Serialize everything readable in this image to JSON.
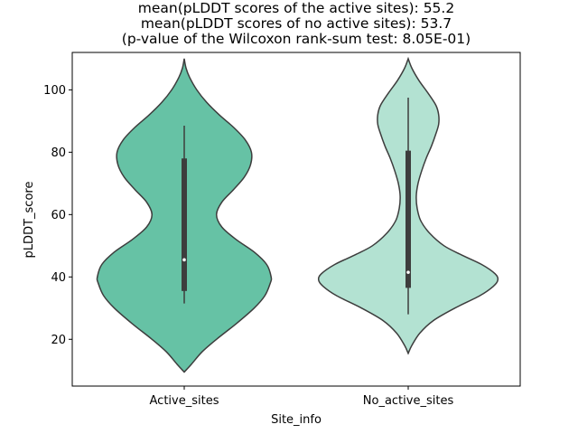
{
  "chart_data": {
    "type": "violin",
    "title_lines": [
      "mean(pLDDT scores of the active sites): 55.2",
      "mean(pLDDT scores of no active sites): 53.7",
      "(p-value of the Wilcoxon rank-sum test: 8.05E-01)"
    ],
    "xlabel": "Site_info",
    "ylabel": "pLDDT_score",
    "categories": [
      "Active_sites",
      "No_active_sites"
    ],
    "ylim": [
      5,
      112
    ],
    "yticks": [
      20,
      40,
      60,
      80,
      100
    ],
    "colors": [
      "#66c2a5",
      "#b3e2d2"
    ],
    "edge_color": "#3d3d3d",
    "violins": [
      {
        "name": "Active_sites",
        "density_min": 9.5,
        "density_max": 110,
        "profile": [
          [
            9.5,
            0.0
          ],
          [
            12,
            0.08
          ],
          [
            16,
            0.2
          ],
          [
            20,
            0.36
          ],
          [
            25,
            0.58
          ],
          [
            30,
            0.78
          ],
          [
            34,
            0.9
          ],
          [
            38,
            0.96
          ],
          [
            40,
            0.97
          ],
          [
            44,
            0.92
          ],
          [
            48,
            0.78
          ],
          [
            52,
            0.58
          ],
          [
            56,
            0.42
          ],
          [
            60,
            0.36
          ],
          [
            64,
            0.42
          ],
          [
            68,
            0.55
          ],
          [
            72,
            0.67
          ],
          [
            76,
            0.74
          ],
          [
            80,
            0.75
          ],
          [
            84,
            0.68
          ],
          [
            88,
            0.55
          ],
          [
            92,
            0.39
          ],
          [
            96,
            0.25
          ],
          [
            100,
            0.14
          ],
          [
            104,
            0.06
          ],
          [
            107,
            0.02
          ],
          [
            110,
            0.0
          ]
        ],
        "q1": 35.5,
        "median": 45.5,
        "q3": 78,
        "whisker_low": 31.5,
        "whisker_high": 88.5
      },
      {
        "name": "No_active_sites",
        "density_min": 15.5,
        "density_max": 110,
        "profile": [
          [
            15.5,
            0.0
          ],
          [
            18,
            0.04
          ],
          [
            22,
            0.13
          ],
          [
            26,
            0.28
          ],
          [
            30,
            0.52
          ],
          [
            34,
            0.8
          ],
          [
            37,
            0.95
          ],
          [
            39,
            1.0
          ],
          [
            41,
            0.97
          ],
          [
            44,
            0.82
          ],
          [
            47,
            0.6
          ],
          [
            50,
            0.4
          ],
          [
            54,
            0.24
          ],
          [
            58,
            0.14
          ],
          [
            62,
            0.1
          ],
          [
            66,
            0.09
          ],
          [
            70,
            0.11
          ],
          [
            74,
            0.15
          ],
          [
            78,
            0.2
          ],
          [
            82,
            0.26
          ],
          [
            86,
            0.31
          ],
          [
            89,
            0.34
          ],
          [
            92,
            0.34
          ],
          [
            95,
            0.31
          ],
          [
            99,
            0.22
          ],
          [
            103,
            0.12
          ],
          [
            107,
            0.04
          ],
          [
            110,
            0.0
          ]
        ],
        "q1": 36.5,
        "median": 41.5,
        "q3": 80.5,
        "whisker_low": 28,
        "whisker_high": 97.5
      }
    ]
  }
}
